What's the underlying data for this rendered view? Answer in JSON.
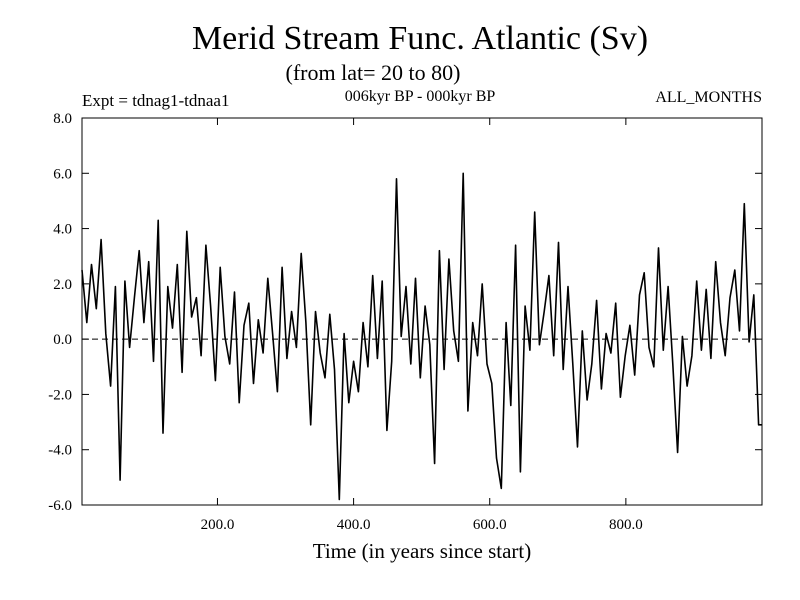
{
  "chart_data": {
    "type": "line",
    "title": "Merid Stream Func. Atlantic (Sv)",
    "subtitle": "(from lat= 20 to 80)",
    "experiment": "Expt = tdnag1-tdnaa1",
    "period": "006kyr BP - 000kyr BP",
    "months": "ALL_MONTHS",
    "xlabel": "Time (in years since start)",
    "ylabel": "",
    "xlim": [
      1,
      1000
    ],
    "ylim": [
      -6.0,
      8.0
    ],
    "x_ticks": [
      200,
      400,
      600,
      800
    ],
    "x_tick_labels": [
      "200.0",
      "400.0",
      "600.0",
      "800.0"
    ],
    "y_ticks": [
      -6,
      -4,
      -2,
      0,
      2,
      4,
      6,
      8
    ],
    "y_tick_labels": [
      "-6.0",
      "-4.0",
      "-2.0",
      "0.0",
      "2.0",
      "4.0",
      "6.0",
      "8.0"
    ],
    "zero_line": true,
    "grid": false,
    "series": [
      {
        "x": [
          1,
          8,
          15,
          22,
          29,
          36,
          43,
          50,
          57,
          64,
          71,
          78,
          85,
          92,
          99,
          106,
          113,
          120,
          127,
          134,
          141,
          148,
          155,
          162,
          169,
          176,
          183,
          190,
          197,
          204,
          211,
          218,
          225,
          232,
          239,
          246,
          253,
          260,
          267,
          274,
          281,
          288,
          295,
          302,
          309,
          316,
          323,
          330,
          337,
          344,
          351,
          358,
          365,
          372,
          379,
          386,
          393,
          400,
          407,
          414,
          421,
          428,
          435,
          442,
          449,
          456,
          463,
          470,
          477,
          484,
          491,
          498,
          505,
          512,
          519,
          526,
          533,
          540,
          547,
          554,
          561,
          568,
          575,
          582,
          589,
          596,
          603,
          610,
          617,
          624,
          631,
          638,
          645,
          652,
          659,
          666,
          673,
          680,
          687,
          694,
          701,
          708,
          715,
          722,
          729,
          736,
          743,
          750,
          757,
          764,
          771,
          778,
          785,
          792,
          799,
          806,
          813,
          820,
          827,
          834,
          841,
          848,
          855,
          862,
          869,
          876,
          883,
          890,
          897,
          904,
          911,
          918,
          925,
          932,
          939,
          946,
          953,
          960,
          967,
          974,
          981,
          988,
          995,
          1000
        ],
        "values": [
          2.5,
          0.6,
          2.7,
          1.1,
          3.6,
          0.2,
          -1.7,
          1.9,
          -5.1,
          2.1,
          -0.3,
          1.5,
          3.2,
          0.6,
          2.8,
          -0.8,
          4.3,
          -3.4,
          1.9,
          0.4,
          2.7,
          -1.2,
          3.9,
          0.8,
          1.5,
          -0.6,
          3.4,
          1.2,
          -1.5,
          2.6,
          0.1,
          -0.9,
          1.7,
          -2.3,
          0.5,
          1.3,
          -1.6,
          0.7,
          -0.5,
          2.2,
          0.2,
          -1.9,
          2.6,
          -0.7,
          1.0,
          -0.3,
          3.1,
          0.6,
          -3.1,
          1.0,
          -0.5,
          -1.4,
          0.9,
          -1.1,
          -5.8,
          0.2,
          -2.3,
          -0.8,
          -1.9,
          0.6,
          -1.0,
          2.3,
          -0.7,
          2.1,
          -3.3,
          -0.8,
          5.8,
          0.1,
          1.9,
          -0.9,
          2.2,
          -1.4,
          1.2,
          -0.2,
          -4.5,
          3.2,
          -1.1,
          2.9,
          0.3,
          -0.8,
          6.0,
          -2.6,
          0.6,
          -0.6,
          2.0,
          -0.9,
          -1.6,
          -4.3,
          -5.4,
          0.6,
          -2.4,
          3.4,
          -4.8,
          1.2,
          -0.4,
          4.6,
          -0.2,
          1.0,
          2.3,
          -0.6,
          3.5,
          -1.1,
          1.9,
          -0.9,
          -3.9,
          0.3,
          -2.2,
          -0.9,
          1.4,
          -1.8,
          0.2,
          -0.5,
          1.3,
          -2.1,
          -0.6,
          0.5,
          -1.3,
          1.6,
          2.4,
          -0.3,
          -1.0,
          3.3,
          -0.4,
          1.9,
          -0.9,
          -4.1,
          0.1,
          -1.7,
          -0.6,
          2.1,
          -0.4,
          1.8,
          -0.7,
          2.8,
          0.6,
          -0.6,
          1.5,
          2.5,
          0.3,
          4.9,
          -0.1,
          1.6,
          -3.1,
          -3.1
        ]
      }
    ]
  }
}
